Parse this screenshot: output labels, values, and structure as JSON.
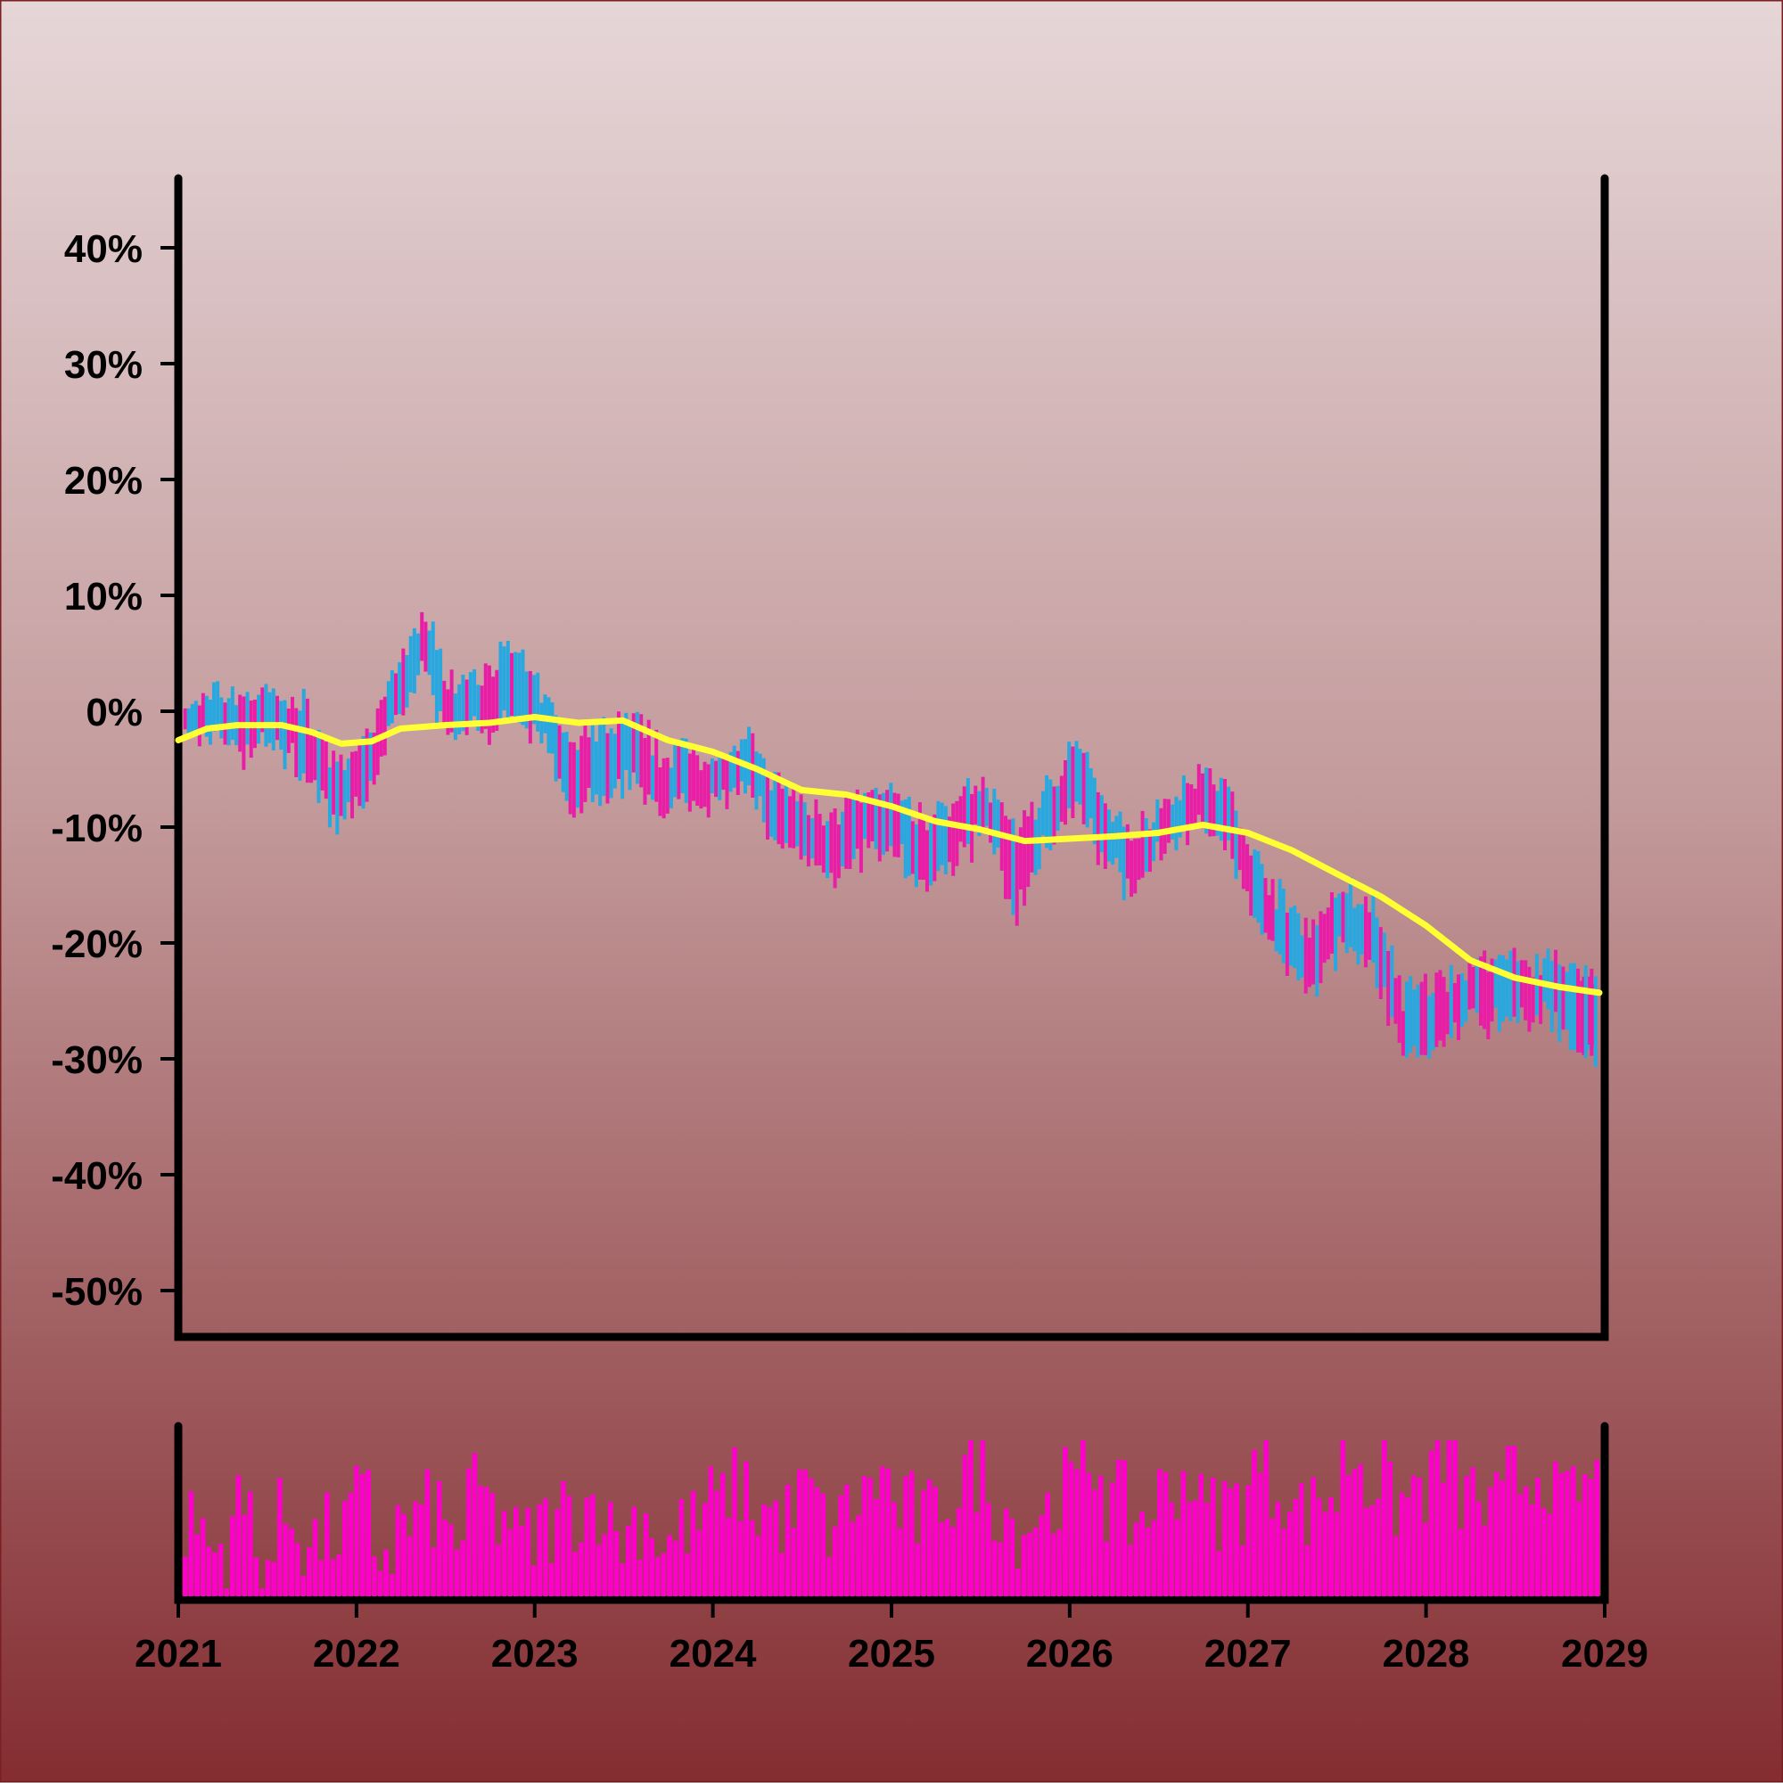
{
  "chart_data": {
    "type": "ohlc",
    "x_axis": {
      "type": "date",
      "tick_labels": [
        "2021",
        "2022",
        "2023",
        "2024",
        "2025",
        "2026",
        "2027",
        "2028",
        "2029"
      ],
      "range": [
        "2021-01-01",
        "2029-01-01"
      ]
    },
    "y_axis": {
      "unit": "%",
      "tick_labels": [
        "40%",
        "30%",
        "20%",
        "10%",
        "0%",
        "-10%",
        "-20%",
        "-30%",
        "-40%",
        "-50%"
      ],
      "ticks": [
        40,
        30,
        20,
        10,
        0,
        -10,
        -20,
        -30,
        -40,
        -50
      ],
      "range": [
        -54,
        46
      ]
    },
    "series": [
      {
        "kind": "price_bars",
        "up_color": "#29a8e0",
        "down_color": "#e81ea6",
        "points": [
          {
            "date": "2021-01-15",
            "low": -3,
            "high": 0
          },
          {
            "date": "2021-03-15",
            "low": -2,
            "high": 2
          },
          {
            "date": "2021-05-15",
            "low": -4,
            "high": 2
          },
          {
            "date": "2021-07-15",
            "low": -3,
            "high": 2
          },
          {
            "date": "2021-09-15",
            "low": -6,
            "high": 1
          },
          {
            "date": "2021-11-15",
            "low": -10,
            "high": -4
          },
          {
            "date": "2022-01-15",
            "low": -9,
            "high": -3
          },
          {
            "date": "2022-03-15",
            "low": -2,
            "high": 3
          },
          {
            "date": "2022-05-15",
            "low": 3,
            "high": 9
          },
          {
            "date": "2022-07-15",
            "low": -3,
            "high": 3
          },
          {
            "date": "2022-09-15",
            "low": -2,
            "high": 4
          },
          {
            "date": "2022-11-15",
            "low": -1,
            "high": 6
          },
          {
            "date": "2023-01-15",
            "low": -3,
            "high": 2
          },
          {
            "date": "2023-03-15",
            "low": -8,
            "high": -2
          },
          {
            "date": "2023-05-15",
            "low": -8,
            "high": -1
          },
          {
            "date": "2023-07-15",
            "low": -6,
            "high": 0
          },
          {
            "date": "2023-09-15",
            "low": -9,
            "high": -3
          },
          {
            "date": "2023-11-15",
            "low": -8,
            "high": -3
          },
          {
            "date": "2024-01-15",
            "low": -9,
            "high": -4
          },
          {
            "date": "2024-03-15",
            "low": -7,
            "high": -2
          },
          {
            "date": "2024-05-15",
            "low": -12,
            "high": -6
          },
          {
            "date": "2024-07-15",
            "low": -13,
            "high": -8
          },
          {
            "date": "2024-09-15",
            "low": -15,
            "high": -8
          },
          {
            "date": "2024-11-15",
            "low": -12,
            "high": -7
          },
          {
            "date": "2025-01-15",
            "low": -13,
            "high": -7
          },
          {
            "date": "2025-03-15",
            "low": -16,
            "high": -9
          },
          {
            "date": "2025-05-15",
            "low": -13,
            "high": -7
          },
          {
            "date": "2025-07-15",
            "low": -11,
            "high": -6
          },
          {
            "date": "2025-09-15",
            "low": -18,
            "high": -10
          },
          {
            "date": "2025-11-15",
            "low": -12,
            "high": -6
          },
          {
            "date": "2026-01-15",
            "low": -8,
            "high": -2
          },
          {
            "date": "2026-03-15",
            "low": -14,
            "high": -8
          },
          {
            "date": "2026-05-15",
            "low": -16,
            "high": -10
          },
          {
            "date": "2026-07-15",
            "low": -12,
            "high": -7
          },
          {
            "date": "2026-09-15",
            "low": -10,
            "high": -5
          },
          {
            "date": "2026-11-15",
            "low": -12,
            "high": -6
          },
          {
            "date": "2027-01-15",
            "low": -18,
            "high": -12
          },
          {
            "date": "2027-03-15",
            "low": -22,
            "high": -16
          },
          {
            "date": "2027-05-15",
            "low": -24,
            "high": -18
          },
          {
            "date": "2027-07-15",
            "low": -21,
            "high": -15
          },
          {
            "date": "2027-09-15",
            "low": -22,
            "high": -16
          },
          {
            "date": "2027-11-15",
            "low": -30,
            "high": -24
          },
          {
            "date": "2028-01-15",
            "low": -30,
            "high": -23
          },
          {
            "date": "2028-03-15",
            "low": -27,
            "high": -22
          },
          {
            "date": "2028-05-15",
            "low": -28,
            "high": -21
          },
          {
            "date": "2028-07-15",
            "low": -27,
            "high": -21
          },
          {
            "date": "2028-09-15",
            "low": -27,
            "high": -21
          },
          {
            "date": "2028-11-15",
            "low": -30,
            "high": -22
          }
        ]
      },
      {
        "kind": "moving_average",
        "color": "#ffff33",
        "points": [
          {
            "date": "2021-01-01",
            "value": -2.5
          },
          {
            "date": "2021-03-01",
            "value": -1.5
          },
          {
            "date": "2021-05-01",
            "value": -1.2
          },
          {
            "date": "2021-08-01",
            "value": -1.2
          },
          {
            "date": "2021-10-01",
            "value": -1.8
          },
          {
            "date": "2021-12-01",
            "value": -2.8
          },
          {
            "date": "2022-02-01",
            "value": -2.6
          },
          {
            "date": "2022-04-01",
            "value": -1.5
          },
          {
            "date": "2022-07-01",
            "value": -1.2
          },
          {
            "date": "2022-10-01",
            "value": -1.0
          },
          {
            "date": "2023-01-01",
            "value": -0.5
          },
          {
            "date": "2023-04-01",
            "value": -1.0
          },
          {
            "date": "2023-07-01",
            "value": -0.8
          },
          {
            "date": "2023-10-01",
            "value": -2.5
          },
          {
            "date": "2024-01-01",
            "value": -3.5
          },
          {
            "date": "2024-04-01",
            "value": -5.0
          },
          {
            "date": "2024-07-01",
            "value": -6.8
          },
          {
            "date": "2024-10-01",
            "value": -7.2
          },
          {
            "date": "2025-01-01",
            "value": -8.2
          },
          {
            "date": "2025-04-01",
            "value": -9.5
          },
          {
            "date": "2025-07-01",
            "value": -10.2
          },
          {
            "date": "2025-10-01",
            "value": -11.2
          },
          {
            "date": "2026-01-01",
            "value": -11.0
          },
          {
            "date": "2026-04-01",
            "value": -10.8
          },
          {
            "date": "2026-07-01",
            "value": -10.5
          },
          {
            "date": "2026-10-01",
            "value": -9.8
          },
          {
            "date": "2027-01-01",
            "value": -10.5
          },
          {
            "date": "2027-04-01",
            "value": -12.0
          },
          {
            "date": "2027-07-01",
            "value": -14.0
          },
          {
            "date": "2027-10-01",
            "value": -16.0
          },
          {
            "date": "2028-01-01",
            "value": -18.5
          },
          {
            "date": "2028-04-01",
            "value": -21.5
          },
          {
            "date": "2028-07-01",
            "value": -23.0
          },
          {
            "date": "2028-10-01",
            "value": -23.8
          },
          {
            "date": "2029-01-01",
            "value": -24.3
          }
        ]
      },
      {
        "kind": "volume_bars",
        "color": "#ff00cc",
        "note_free": true,
        "relative_values": [
          0.45,
          0.3,
          0.55,
          0.25,
          0.5,
          0.35,
          0.4,
          0.6,
          0.3,
          0.45,
          0.55,
          0.4,
          0.65,
          0.5,
          0.35,
          0.45,
          0.55,
          0.6,
          0.4,
          0.5,
          0.35,
          0.45,
          0.6,
          0.7,
          0.55,
          0.5,
          0.65,
          0.45,
          0.6,
          0.75,
          0.55,
          0.5,
          0.65,
          0.8,
          0.6,
          0.45,
          0.55,
          0.7,
          0.85,
          0.6,
          0.5,
          0.65,
          0.75,
          0.55,
          0.6,
          0.8,
          0.7,
          0.55,
          0.65,
          0.9,
          0.75,
          0.6,
          0.7,
          0.85,
          0.65,
          0.55,
          0.75,
          0.8,
          0.6,
          0.7
        ]
      }
    ],
    "grid": false,
    "legend": "none"
  }
}
